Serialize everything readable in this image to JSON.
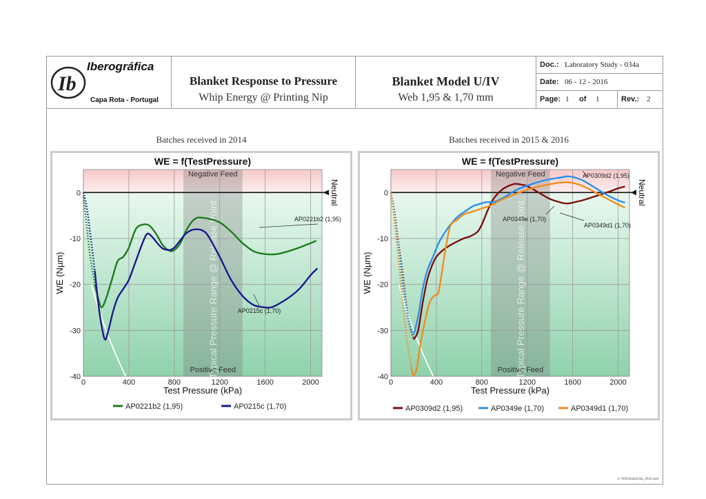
{
  "header": {
    "logo": {
      "brand": "Iberográfica",
      "mark": "Ib",
      "location": "Capa Rota - Portugal"
    },
    "title_left": {
      "main": "Blanket Response to Pressure",
      "sub": "Whip Energy @ Printing Nip"
    },
    "title_right": {
      "main": "Blanket Model U/IV",
      "sub": "Web 1,95 & 1,70 mm"
    },
    "meta": {
      "doc_label": "Doc.:",
      "doc_value": "Laboratory Study - 034a",
      "date_label": "Date:",
      "date_value": "06 - 12 - 2016",
      "page_label": "Page:",
      "page_value": "1",
      "of_label": "of",
      "of_value": "1",
      "rev_label": "Rev.:",
      "rev_value": "2"
    }
  },
  "captions": {
    "left": "Batches received in 2014",
    "right": "Batches received in 2015 & 2016"
  },
  "footer": "L:\\WD\\Study034a_2016.wpd",
  "colors": {
    "green": "#1f7a1f",
    "navy": "#1a1a8c",
    "maroon": "#7a1010",
    "blue": "#2e8fe6",
    "orange": "#f08c1e"
  },
  "chart_data": [
    {
      "type": "line",
      "title": "WE = f(TestPressure)",
      "xlabel": "Test Pressure (kPa)",
      "ylabel": "WE (Nµm)",
      "xlim": [
        0,
        2100
      ],
      "ylim": [
        -40,
        5
      ],
      "xticks": [
        0,
        400,
        800,
        1200,
        1600,
        2000
      ],
      "yticks": [
        0,
        -10,
        -20,
        -30,
        -40
      ],
      "grid": true,
      "legend": "bottom",
      "regions": {
        "negative_feed": "Negative Feed",
        "positive_feed": "Positive Feed",
        "neutral": "Neutral",
        "range_label": "Typical Pressure Range @ Release Point",
        "range": [
          880,
          1400
        ]
      },
      "series": [
        {
          "name": "AP0221b2 (1,95)",
          "label": "AP0221b2 (1,95)",
          "color": "#1f7a1f",
          "x": [
            0,
            20,
            40,
            60,
            80,
            100,
            130,
            160,
            200,
            250,
            300,
            350,
            400,
            460,
            520,
            580,
            640,
            700,
            760,
            800,
            850,
            900,
            950,
            1000,
            1050,
            1100,
            1200,
            1300,
            1400,
            1500,
            1600,
            1700,
            1800,
            1900,
            2000,
            2050
          ],
          "y": [
            -1,
            -5,
            -10,
            -14,
            -17,
            -20,
            -23,
            -25,
            -23,
            -19,
            -15,
            -14,
            -12,
            -8,
            -7,
            -7.2,
            -9,
            -11.5,
            -12.7,
            -12.5,
            -11.2,
            -8.5,
            -6.5,
            -5.5,
            -5.5,
            -5.7,
            -6.5,
            -8.5,
            -11,
            -12.8,
            -13.4,
            -13.4,
            -12.8,
            -12,
            -11,
            -10.5
          ]
        },
        {
          "name": "AP0215c (1,70)",
          "label": "AP0215c (1,70)",
          "color": "#1a1a8c",
          "x": [
            0,
            20,
            40,
            60,
            80,
            100,
            130,
            160,
            190,
            220,
            260,
            300,
            350,
            400,
            460,
            520,
            560,
            600,
            650,
            700,
            760,
            800,
            850,
            900,
            950,
            1000,
            1050,
            1100,
            1200,
            1300,
            1400,
            1500,
            1600,
            1650,
            1700,
            1800,
            1900,
            2000,
            2060
          ],
          "y": [
            0,
            -2,
            -5,
            -9,
            -13,
            -17,
            -24,
            -29,
            -32,
            -30,
            -26,
            -23,
            -21,
            -19,
            -15,
            -11,
            -9,
            -9.5,
            -11,
            -12.2,
            -12.5,
            -12,
            -10.5,
            -9,
            -8.2,
            -8,
            -8.3,
            -9.5,
            -14,
            -19,
            -22.5,
            -24.5,
            -25,
            -25,
            -24.5,
            -23,
            -21,
            -18,
            -16.5
          ]
        }
      ]
    },
    {
      "type": "line",
      "title": "WE = f(TestPressure)",
      "xlabel": "Test Pressure (kPa)",
      "ylabel": "WE (Nµm)",
      "xlim": [
        0,
        2100
      ],
      "ylim": [
        -40,
        5
      ],
      "xticks": [
        0,
        400,
        800,
        1200,
        1600,
        2000
      ],
      "yticks": [
        0,
        -10,
        -20,
        -30,
        -40
      ],
      "grid": true,
      "legend": "bottom",
      "regions": {
        "negative_feed": "Negative Feed",
        "positive_feed": "Positive Feed",
        "neutral": "Neutral",
        "range_label": "Typical Pressure Range @ Release Point",
        "range": [
          880,
          1400
        ]
      },
      "series": [
        {
          "name": "AP0309d2 (1,95)",
          "label": "AP0309d2 (1,95)",
          "color": "#7a1010",
          "x": [
            0,
            30,
            60,
            100,
            150,
            200,
            240,
            280,
            320,
            360,
            400,
            460,
            520,
            580,
            640,
            700,
            760,
            800,
            850,
            900,
            950,
            1000,
            1050,
            1100,
            1150,
            1200,
            1300,
            1400,
            1500,
            1550,
            1600,
            1700,
            1800,
            1900,
            2000,
            2060
          ],
          "y": [
            0,
            -4,
            -10,
            -17,
            -27,
            -32,
            -30,
            -24,
            -19,
            -16,
            -14,
            -12.5,
            -11.5,
            -10.7,
            -10,
            -9.5,
            -8.6,
            -7,
            -4,
            -1.5,
            0,
            1,
            1.6,
            1.9,
            1.7,
            1.4,
            0,
            -1.4,
            -2.2,
            -2.4,
            -2.2,
            -1.6,
            -0.8,
            0,
            0.9,
            1.3
          ]
        },
        {
          "name": "AP0349e (1,70)",
          "label": "AP0349e (1,70)",
          "color": "#2e8fe6",
          "x": [
            0,
            30,
            60,
            100,
            150,
            200,
            240,
            280,
            320,
            370,
            420,
            480,
            540,
            600,
            660,
            720,
            780,
            840,
            900,
            960,
            1000,
            1100,
            1200,
            1300,
            1400,
            1500,
            1550,
            1600,
            1650,
            1700,
            1800,
            1900,
            2000,
            2060
          ],
          "y": [
            0,
            -5,
            -11,
            -19,
            -27,
            -31,
            -27,
            -21,
            -17,
            -14,
            -11,
            -8.5,
            -6.5,
            -5,
            -4,
            -3,
            -2.5,
            -2.1,
            -2.1,
            -1.5,
            -1,
            0.5,
            1.5,
            2.3,
            2.9,
            3.3,
            3.5,
            3.4,
            3,
            2.5,
            1,
            -0.5,
            -1.7,
            -2.2
          ]
        },
        {
          "name": "AP0349d1 (1,70)",
          "label": "AP0349d1 (1,70)",
          "color": "#f08c1e",
          "x": [
            0,
            30,
            60,
            100,
            140,
            180,
            200,
            230,
            260,
            300,
            340,
            380,
            420,
            470,
            520,
            580,
            640,
            700,
            760,
            820,
            880,
            940,
            1000,
            1100,
            1200,
            1300,
            1400,
            1500,
            1600,
            1700,
            1800,
            1900,
            2000,
            2060
          ],
          "y": [
            0,
            -6,
            -13,
            -23,
            -32,
            -38,
            -39.8,
            -38,
            -33,
            -28,
            -24,
            -22.5,
            -21.5,
            -14,
            -7.5,
            -6,
            -4.8,
            -4.3,
            -3.8,
            -3.3,
            -2.8,
            -2,
            -1.3,
            -0.3,
            0.6,
            1.3,
            1.8,
            2.2,
            2.1,
            1.3,
            0,
            -1.3,
            -2.6,
            -3.3
          ]
        }
      ]
    }
  ]
}
